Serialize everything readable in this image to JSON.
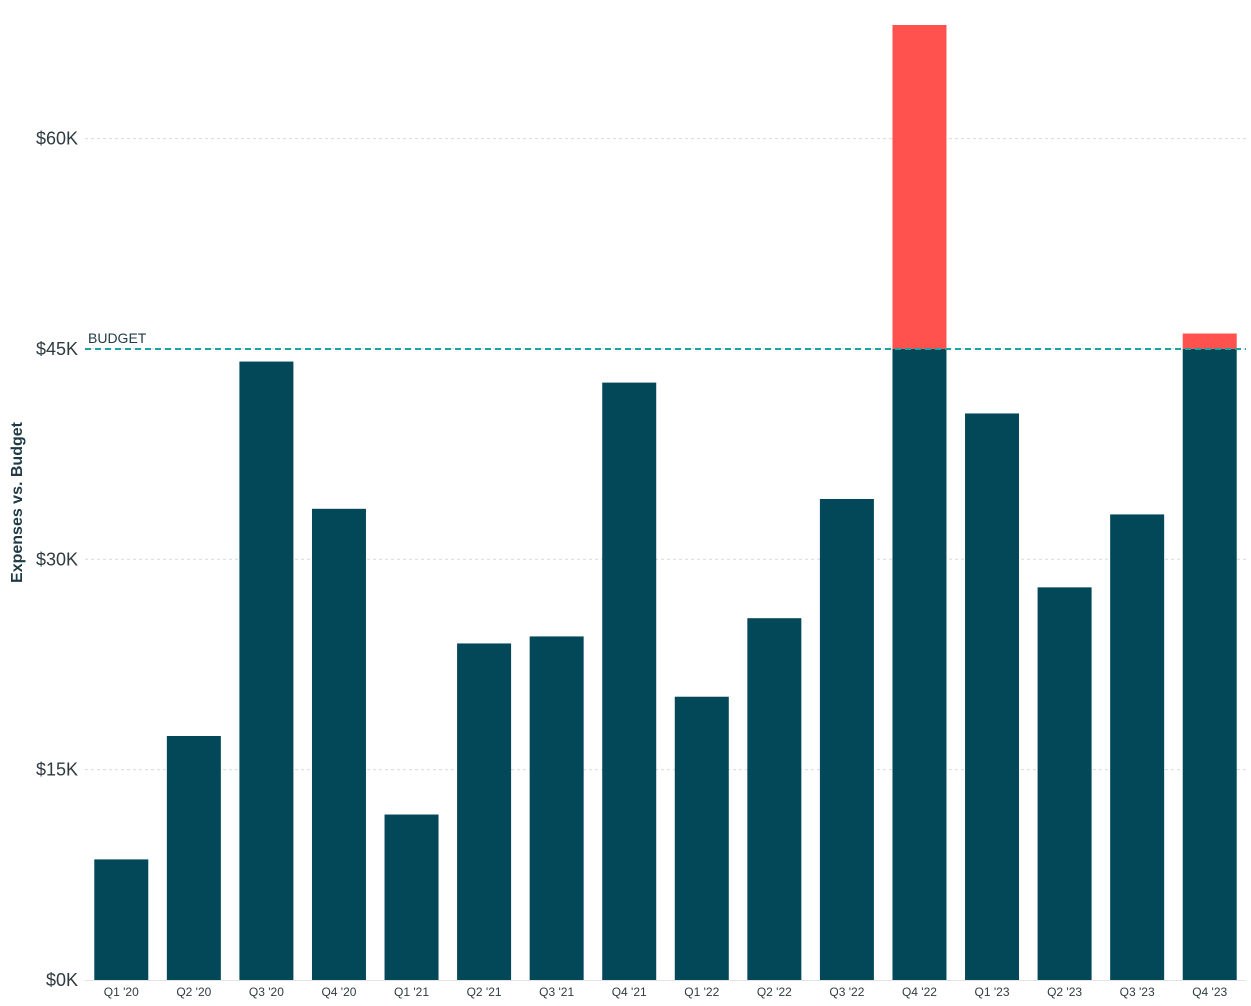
{
  "chart_data": {
    "type": "bar",
    "ylabel": "Expenses vs. Budget",
    "categories": [
      "Q1 '20",
      "Q2 '20",
      "Q3 '20",
      "Q4 '20",
      "Q1 '21",
      "Q2 '21",
      "Q3 '21",
      "Q4 '21",
      "Q1 '22",
      "Q2 '22",
      "Q3 '22",
      "Q4 '22",
      "Q1 '23",
      "Q2 '23",
      "Q3 '23",
      "Q4 '23"
    ],
    "values": [
      8600,
      17400,
      44100,
      33600,
      11800,
      24000,
      24500,
      42600,
      20200,
      25800,
      34300,
      68100,
      40400,
      28000,
      33200,
      46100
    ],
    "budget": 45000,
    "budget_label": "BUDGET",
    "ylim": [
      0,
      68100
    ],
    "yticks": [
      0,
      15000,
      30000,
      45000,
      60000
    ],
    "ytick_labels": [
      "$0K",
      "$15K",
      "$30K",
      "$45K",
      "$60K"
    ],
    "grid": true,
    "colors": {
      "within_budget": "#034858",
      "over_budget": "#ff524f",
      "budget_line": "#1fa2a3",
      "grid": "#d9d9d9"
    }
  }
}
